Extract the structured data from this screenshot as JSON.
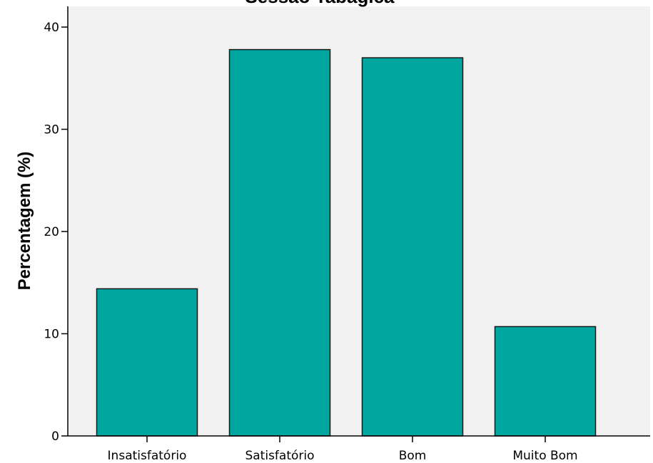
{
  "chart_data": {
    "type": "bar",
    "title": "Sessão Tabagica",
    "xlabel": "",
    "ylabel": "Percentagem (%)",
    "categories": [
      "Insatisfatório",
      "Satisfatório",
      "Bom",
      "Muito Bom"
    ],
    "values": [
      14.4,
      37.8,
      37.0,
      10.7
    ],
    "ylim": [
      0,
      40.0
    ],
    "yticks": [
      0,
      10,
      20,
      30,
      40
    ],
    "ytick_labels": [
      "0",
      "10",
      "20",
      "30",
      "40"
    ],
    "grid": false,
    "legend": "none",
    "colors": {
      "bar_fill": "#00a6a0",
      "bar_stroke": "#1a1a1a",
      "plot_background": "#f1f1f1",
      "axis": "#000000"
    }
  }
}
